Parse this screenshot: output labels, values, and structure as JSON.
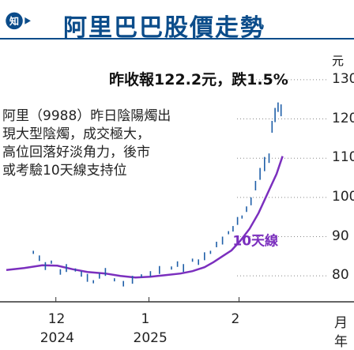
{
  "header": {
    "title": "阿里巴巴股價走勢",
    "logo_icon": "trend-logo-icon",
    "logo_glyph": "知"
  },
  "price_line": "昨收報122.2元，跌1.5%",
  "description": [
    "阿里（9988）昨日陰陽燭出",
    "現大型陰燭，成交極大，",
    "高位回落好淡角力，後市",
    "或考驗10天線支持位"
  ],
  "colors": {
    "brand": "#0b4c8a",
    "ma_line": "#7b2fbe",
    "candle": "#1f5fa8",
    "grid": "#888888"
  },
  "chart_data": {
    "type": "line",
    "y_unit": "元",
    "ylim": [
      75,
      133
    ],
    "yticks": [
      "130",
      "120",
      "110",
      "100",
      "90",
      "80"
    ],
    "ytick_values": [
      130,
      120,
      110,
      100,
      90,
      80
    ],
    "x_ticks": [
      {
        "month": "12",
        "year": "2024",
        "t": 0.165
      },
      {
        "month": "1",
        "year": "2025",
        "t": 0.475
      },
      {
        "month": "2",
        "year": "",
        "t": 0.775
      }
    ],
    "x_unit_month": "月",
    "x_unit_year": "年",
    "series": [
      {
        "name": "10天線",
        "kind": "moving-average",
        "t": [
          0.0,
          0.06,
          0.12,
          0.17,
          0.22,
          0.27,
          0.33,
          0.38,
          0.43,
          0.48,
          0.53,
          0.58,
          0.62,
          0.66,
          0.69,
          0.72,
          0.75,
          0.78,
          0.81,
          0.84,
          0.87,
          0.9,
          0.92
        ],
        "values": [
          81.5,
          82.0,
          82.7,
          82.6,
          81.7,
          81.0,
          80.6,
          80.0,
          79.6,
          79.8,
          80.2,
          80.6,
          81.2,
          82.2,
          83.5,
          85.0,
          86.5,
          89.0,
          92.0,
          96.0,
          101.0,
          106.0,
          110.5
        ]
      },
      {
        "name": "daily",
        "kind": "candles",
        "t": [
          0.09,
          0.11,
          0.13,
          0.15,
          0.18,
          0.2,
          0.23,
          0.25,
          0.27,
          0.29,
          0.31,
          0.33,
          0.36,
          0.39,
          0.42,
          0.45,
          0.48,
          0.51,
          0.55,
          0.57,
          0.59,
          0.62,
          0.64,
          0.66,
          0.68,
          0.7,
          0.72,
          0.74,
          0.755,
          0.77,
          0.785,
          0.8,
          0.815,
          0.83,
          0.845,
          0.86,
          0.875,
          0.885,
          0.895,
          0.905,
          0.915
        ],
        "values": [
          86.0,
          84.5,
          82.5,
          83.5,
          81.0,
          82.0,
          81.5,
          80.5,
          79.5,
          78.5,
          80.0,
          81.0,
          79.0,
          78.0,
          79.0,
          80.0,
          80.5,
          81.5,
          82.0,
          83.0,
          82.0,
          84.0,
          83.5,
          85.0,
          86.0,
          88.0,
          89.0,
          91.0,
          92.0,
          94.0,
          95.0,
          97.0,
          99.0,
          103.0,
          106.0,
          108.5,
          110.0,
          118.0,
          121.0,
          123.0,
          122.2
        ]
      }
    ],
    "annotations": [
      {
        "text": "10天線",
        "target": "10天線"
      }
    ]
  }
}
